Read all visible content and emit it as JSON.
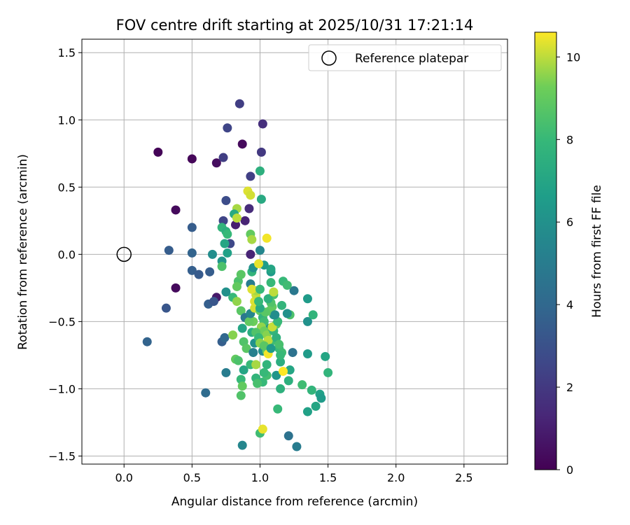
{
  "chart_data": {
    "type": "scatter",
    "title": "FOV centre drift starting at 2025/10/31 17:21:14",
    "xlabel": "Angular distance from reference (arcmin)",
    "ylabel": "Rotation from reference (arcmin)",
    "xlim": [
      -0.31,
      2.82
    ],
    "ylim": [
      -1.56,
      1.6
    ],
    "xticks": [
      0.0,
      0.5,
      1.0,
      1.5,
      2.0,
      2.5
    ],
    "xtick_labels": [
      "0.0",
      "0.5",
      "1.0",
      "1.5",
      "2.0",
      "2.5"
    ],
    "yticks": [
      -1.5,
      -1.0,
      -0.5,
      0.0,
      0.5,
      1.0,
      1.5
    ],
    "ytick_labels": [
      "−1.5",
      "−1.0",
      "−0.5",
      "0.0",
      "0.5",
      "1.0",
      "1.5"
    ],
    "grid": true,
    "legend": {
      "position": "top-right",
      "label": "Reference platepar"
    },
    "reference_point": {
      "x": 0.0,
      "y": 0.0
    },
    "colorbar": {
      "label": "Hours from first FF file",
      "colormap": "viridis",
      "range": [
        0,
        10.6
      ],
      "ticks": [
        0,
        2,
        4,
        6,
        8,
        10
      ],
      "tick_labels": [
        "0",
        "2",
        "4",
        "6",
        "8",
        "10"
      ]
    },
    "points": [
      {
        "x": 0.25,
        "y": 0.76,
        "c": 0.1
      },
      {
        "x": 0.5,
        "y": 0.71,
        "c": 0.2
      },
      {
        "x": 0.68,
        "y": 0.68,
        "c": 0.4
      },
      {
        "x": 0.87,
        "y": 0.82,
        "c": 0.3
      },
      {
        "x": 0.38,
        "y": 0.33,
        "c": 0.3
      },
      {
        "x": 0.38,
        "y": -0.25,
        "c": 0.3
      },
      {
        "x": 0.68,
        "y": -0.32,
        "c": 0.8
      },
      {
        "x": 0.85,
        "y": 1.12,
        "c": 2.2
      },
      {
        "x": 1.02,
        "y": 0.97,
        "c": 1.6
      },
      {
        "x": 0.76,
        "y": 0.94,
        "c": 2.5
      },
      {
        "x": 0.73,
        "y": 0.72,
        "c": 2.2
      },
      {
        "x": 1.01,
        "y": 0.76,
        "c": 2.0
      },
      {
        "x": 0.93,
        "y": 0.58,
        "c": 2.3
      },
      {
        "x": 0.75,
        "y": 0.4,
        "c": 2.8
      },
      {
        "x": 0.92,
        "y": 0.34,
        "c": 1.5
      },
      {
        "x": 0.89,
        "y": 0.25,
        "c": 1.2
      },
      {
        "x": 0.82,
        "y": 0.22,
        "c": 1.0
      },
      {
        "x": 0.5,
        "y": 0.2,
        "c": 3.5
      },
      {
        "x": 0.73,
        "y": 0.25,
        "c": 2.5
      },
      {
        "x": 0.33,
        "y": 0.03,
        "c": 3.5
      },
      {
        "x": 0.5,
        "y": 0.01,
        "c": 3.8
      },
      {
        "x": 0.5,
        "y": -0.12,
        "c": 3.6
      },
      {
        "x": 0.55,
        "y": -0.15,
        "c": 3.4
      },
      {
        "x": 0.63,
        "y": -0.13,
        "c": 3.5
      },
      {
        "x": 0.93,
        "y": 0.0,
        "c": 1.2
      },
      {
        "x": 0.78,
        "y": 0.08,
        "c": 2.6
      },
      {
        "x": 0.31,
        "y": -0.4,
        "c": 3.2
      },
      {
        "x": 0.17,
        "y": -0.65,
        "c": 3.8
      },
      {
        "x": 0.62,
        "y": -0.37,
        "c": 3.6
      },
      {
        "x": 0.66,
        "y": -0.35,
        "c": 3.2
      },
      {
        "x": 0.6,
        "y": -1.03,
        "c": 4.2
      },
      {
        "x": 0.72,
        "y": -0.65,
        "c": 3.6
      },
      {
        "x": 0.74,
        "y": -0.62,
        "c": 4.0
      },
      {
        "x": 0.75,
        "y": -0.88,
        "c": 5.0
      },
      {
        "x": 0.87,
        "y": -1.42,
        "c": 5.5
      },
      {
        "x": 1.0,
        "y": 0.62,
        "c": 7.5
      },
      {
        "x": 1.01,
        "y": 0.41,
        "c": 7.2
      },
      {
        "x": 1.0,
        "y": 0.03,
        "c": 5.5
      },
      {
        "x": 1.21,
        "y": -1.35,
        "c": 4.5
      },
      {
        "x": 1.27,
        "y": -1.43,
        "c": 5.0
      },
      {
        "x": 1.24,
        "y": -0.73,
        "c": 4.5
      },
      {
        "x": 1.25,
        "y": -0.27,
        "c": 4.8
      },
      {
        "x": 1.35,
        "y": -0.33,
        "c": 6.5
      },
      {
        "x": 1.35,
        "y": -0.5,
        "c": 6.0
      },
      {
        "x": 1.35,
        "y": -0.74,
        "c": 6.5
      },
      {
        "x": 1.35,
        "y": -1.17,
        "c": 6.8
      },
      {
        "x": 1.41,
        "y": -1.13,
        "c": 7.0
      },
      {
        "x": 1.44,
        "y": -1.04,
        "c": 6.8
      },
      {
        "x": 1.45,
        "y": -1.07,
        "c": 6.5
      },
      {
        "x": 1.48,
        "y": -0.76,
        "c": 7.0
      },
      {
        "x": 1.5,
        "y": -0.88,
        "c": 7.8
      },
      {
        "x": 1.39,
        "y": -0.45,
        "c": 7.8
      },
      {
        "x": 1.38,
        "y": -1.01,
        "c": 7.8
      },
      {
        "x": 1.31,
        "y": -0.97,
        "c": 8.2
      },
      {
        "x": 1.21,
        "y": -0.94,
        "c": 7.5
      },
      {
        "x": 1.22,
        "y": -0.86,
        "c": 7.0
      },
      {
        "x": 1.17,
        "y": -0.2,
        "c": 8.0
      },
      {
        "x": 1.2,
        "y": -0.23,
        "c": 8.2
      },
      {
        "x": 1.22,
        "y": -0.45,
        "c": 8.5
      },
      {
        "x": 1.16,
        "y": -0.38,
        "c": 7.8
      },
      {
        "x": 1.14,
        "y": -0.7,
        "c": 8.0
      },
      {
        "x": 1.13,
        "y": -1.15,
        "c": 8.0
      },
      {
        "x": 1.15,
        "y": -1.0,
        "c": 7.6
      },
      {
        "x": 1.12,
        "y": -0.9,
        "c": 6.2
      },
      {
        "x": 1.08,
        "y": -0.13,
        "c": 6.5
      },
      {
        "x": 1.08,
        "y": -0.11,
        "c": 7.0
      },
      {
        "x": 1.03,
        "y": -0.08,
        "c": 6.6
      },
      {
        "x": 1.08,
        "y": -0.21,
        "c": 8.0
      },
      {
        "x": 1.1,
        "y": -0.3,
        "c": 8.4
      },
      {
        "x": 1.1,
        "y": -0.45,
        "c": 6.2
      },
      {
        "x": 1.06,
        "y": -0.55,
        "c": 6.0
      },
      {
        "x": 1.08,
        "y": -0.65,
        "c": 8.2
      },
      {
        "x": 1.02,
        "y": -0.72,
        "c": 5.8
      },
      {
        "x": 1.02,
        "y": -0.95,
        "c": 8.0
      },
      {
        "x": 1.05,
        "y": -0.82,
        "c": 7.8
      },
      {
        "x": 1.0,
        "y": -1.33,
        "c": 8.2
      },
      {
        "x": 1.02,
        "y": -1.3,
        "c": 10.4
      },
      {
        "x": 1.05,
        "y": 0.12,
        "c": 10.5
      },
      {
        "x": 0.91,
        "y": 0.47,
        "c": 10.3
      },
      {
        "x": 0.93,
        "y": 0.44,
        "c": 10.2
      },
      {
        "x": 0.83,
        "y": 0.34,
        "c": 9.8
      },
      {
        "x": 0.81,
        "y": 0.3,
        "c": 7.2
      },
      {
        "x": 0.83,
        "y": 0.27,
        "c": 10.0
      },
      {
        "x": 0.72,
        "y": 0.2,
        "c": 7.8
      },
      {
        "x": 0.75,
        "y": 0.17,
        "c": 7.5
      },
      {
        "x": 0.76,
        "y": 0.15,
        "c": 8.0
      },
      {
        "x": 0.74,
        "y": 0.08,
        "c": 7.0
      },
      {
        "x": 0.76,
        "y": 0.01,
        "c": 6.8
      },
      {
        "x": 0.72,
        "y": -0.05,
        "c": 6.2
      },
      {
        "x": 0.72,
        "y": -0.09,
        "c": 8.5
      },
      {
        "x": 0.65,
        "y": 0.0,
        "c": 5.8
      },
      {
        "x": 0.8,
        "y": -0.32,
        "c": 8.0
      },
      {
        "x": 0.75,
        "y": -0.28,
        "c": 6.0
      },
      {
        "x": 0.84,
        "y": -0.2,
        "c": 8.5
      },
      {
        "x": 0.83,
        "y": -0.24,
        "c": 9.0
      },
      {
        "x": 0.86,
        "y": -0.15,
        "c": 8.8
      },
      {
        "x": 0.83,
        "y": -0.35,
        "c": 9.6
      },
      {
        "x": 0.86,
        "y": -0.42,
        "c": 8.8
      },
      {
        "x": 0.89,
        "y": -0.47,
        "c": 4.8
      },
      {
        "x": 0.87,
        "y": -0.55,
        "c": 7.0
      },
      {
        "x": 0.8,
        "y": -0.6,
        "c": 9.5
      },
      {
        "x": 0.88,
        "y": -0.65,
        "c": 8.6
      },
      {
        "x": 0.9,
        "y": -0.7,
        "c": 8.8
      },
      {
        "x": 0.82,
        "y": -0.78,
        "c": 9.0
      },
      {
        "x": 0.84,
        "y": -0.79,
        "c": 8.5
      },
      {
        "x": 0.88,
        "y": -0.86,
        "c": 7.0
      },
      {
        "x": 0.86,
        "y": -0.93,
        "c": 8.0
      },
      {
        "x": 0.87,
        "y": -0.98,
        "c": 9.0
      },
      {
        "x": 0.86,
        "y": -1.05,
        "c": 8.6
      },
      {
        "x": 0.93,
        "y": -0.82,
        "c": 8.0
      },
      {
        "x": 0.97,
        "y": -0.82,
        "c": 9.8
      },
      {
        "x": 0.95,
        "y": -0.73,
        "c": 5.2
      },
      {
        "x": 0.96,
        "y": -0.66,
        "c": 6.0
      },
      {
        "x": 0.94,
        "y": -0.58,
        "c": 7.4
      },
      {
        "x": 0.95,
        "y": -0.5,
        "c": 9.2
      },
      {
        "x": 0.92,
        "y": -0.5,
        "c": 9.0
      },
      {
        "x": 0.93,
        "y": -0.44,
        "c": 5.5
      },
      {
        "x": 0.96,
        "y": -0.4,
        "c": 10.2
      },
      {
        "x": 0.96,
        "y": -0.35,
        "c": 10.3
      },
      {
        "x": 0.97,
        "y": -0.3,
        "c": 10.1
      },
      {
        "x": 0.97,
        "y": -0.27,
        "c": 9.8
      },
      {
        "x": 0.93,
        "y": -0.22,
        "c": 5.0
      },
      {
        "x": 0.94,
        "y": -0.26,
        "c": 10.3
      },
      {
        "x": 0.94,
        "y": -0.13,
        "c": 7.8
      },
      {
        "x": 0.95,
        "y": -0.1,
        "c": 6.0
      },
      {
        "x": 0.93,
        "y": 0.15,
        "c": 9.0
      },
      {
        "x": 0.94,
        "y": 0.11,
        "c": 9.8
      },
      {
        "x": 0.99,
        "y": -0.07,
        "c": 10.4
      },
      {
        "x": 1.0,
        "y": -0.26,
        "c": 8.0
      },
      {
        "x": 1.0,
        "y": -0.42,
        "c": 9.0
      },
      {
        "x": 1.02,
        "y": -0.47,
        "c": 7.8
      },
      {
        "x": 1.03,
        "y": -0.5,
        "c": 8.2
      },
      {
        "x": 1.01,
        "y": -0.54,
        "c": 9.6
      },
      {
        "x": 1.03,
        "y": -0.57,
        "c": 9.2
      },
      {
        "x": 1.05,
        "y": -0.6,
        "c": 9.5
      },
      {
        "x": 1.06,
        "y": -0.64,
        "c": 10.0
      },
      {
        "x": 1.05,
        "y": -0.72,
        "c": 9.0
      },
      {
        "x": 1.06,
        "y": -0.74,
        "c": 10.5
      },
      {
        "x": 1.1,
        "y": -0.57,
        "c": 7.8
      },
      {
        "x": 1.12,
        "y": -0.52,
        "c": 8.8
      },
      {
        "x": 1.09,
        "y": -0.54,
        "c": 10.1
      },
      {
        "x": 1.09,
        "y": -0.39,
        "c": 9.0
      },
      {
        "x": 1.08,
        "y": -0.36,
        "c": 8.6
      },
      {
        "x": 1.06,
        "y": -0.33,
        "c": 7.6
      },
      {
        "x": 1.1,
        "y": -0.28,
        "c": 10.0
      },
      {
        "x": 1.13,
        "y": -0.5,
        "c": 8.0
      },
      {
        "x": 1.12,
        "y": -0.62,
        "c": 7.6
      },
      {
        "x": 1.14,
        "y": -0.67,
        "c": 8.4
      },
      {
        "x": 1.16,
        "y": -0.73,
        "c": 8.2
      },
      {
        "x": 1.15,
        "y": -0.8,
        "c": 7.4
      },
      {
        "x": 1.17,
        "y": -0.87,
        "c": 10.6
      },
      {
        "x": 1.15,
        "y": -0.75,
        "c": 8.0
      },
      {
        "x": 1.05,
        "y": -0.9,
        "c": 8.3
      },
      {
        "x": 1.03,
        "y": -0.88,
        "c": 8.0
      },
      {
        "x": 0.97,
        "y": -0.92,
        "c": 7.8
      },
      {
        "x": 0.98,
        "y": -0.96,
        "c": 8.4
      },
      {
        "x": 1.07,
        "y": -0.42,
        "c": 9.0
      },
      {
        "x": 1.04,
        "y": -0.43,
        "c": 8.8
      },
      {
        "x": 1.0,
        "y": -0.4,
        "c": 7.2
      },
      {
        "x": 0.99,
        "y": -0.35,
        "c": 8.0
      },
      {
        "x": 0.97,
        "y": -0.58,
        "c": 8.6
      },
      {
        "x": 0.99,
        "y": -0.62,
        "c": 8.0
      },
      {
        "x": 1.0,
        "y": -0.66,
        "c": 9.5
      },
      {
        "x": 1.03,
        "y": -0.68,
        "c": 8.8
      },
      {
        "x": 1.11,
        "y": -0.45,
        "c": 5.8
      },
      {
        "x": 1.2,
        "y": -0.44,
        "c": 6.0
      },
      {
        "x": 1.08,
        "y": -0.7,
        "c": 6.5
      }
    ]
  }
}
